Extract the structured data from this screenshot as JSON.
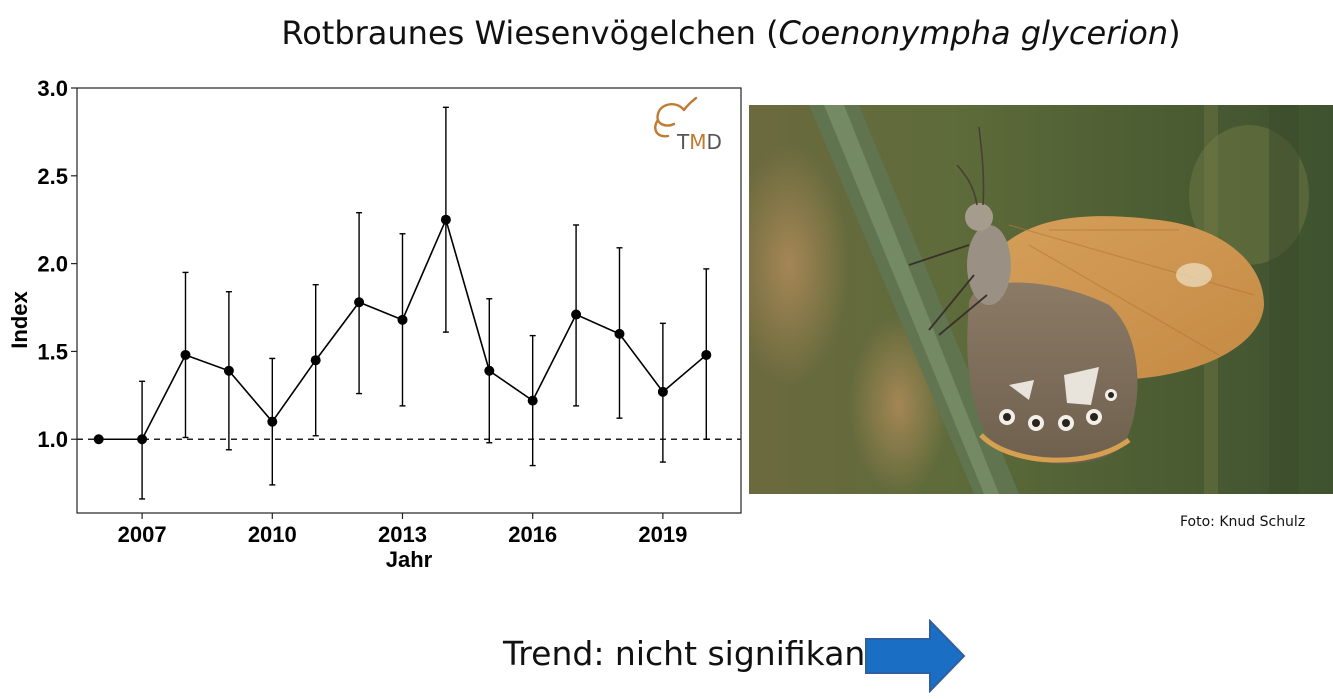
{
  "title": {
    "main": "Rotbraunes Wiesenvögelchen (",
    "species": "Coenonympha glycerion",
    "close": ")"
  },
  "logo": {
    "text_t": "T",
    "text_m": "M",
    "text_d": "D"
  },
  "photo_credit": "Foto: Knud Schulz",
  "trend": {
    "label": "Trend: nicht signifikant",
    "arrow_color": "#1a6fc4"
  },
  "chart_data": {
    "type": "line",
    "xlabel": "Jahr",
    "ylabel": "Index",
    "xlim": [
      2005.5,
      2020.8
    ],
    "ylim": [
      0.58,
      3.0
    ],
    "x_ticks": [
      2007,
      2010,
      2013,
      2016,
      2019
    ],
    "y_ticks": [
      1.0,
      1.5,
      2.0,
      2.5,
      3.0
    ],
    "y_tick_labels": [
      "1.0",
      "1.5",
      "2.0",
      "2.5",
      "3.0"
    ],
    "reference_line": 1.0,
    "grid": false,
    "series": [
      {
        "x": [
          2006,
          2007,
          2008,
          2009,
          2010,
          2011,
          2012,
          2013,
          2014,
          2015,
          2016,
          2017,
          2018,
          2019,
          2020
        ],
        "values": [
          1.0,
          1.0,
          1.48,
          1.39,
          1.1,
          1.45,
          1.78,
          1.68,
          2.25,
          1.39,
          1.22,
          1.71,
          1.6,
          1.27,
          1.48
        ],
        "lower": [
          1.0,
          0.66,
          1.01,
          0.94,
          0.74,
          1.02,
          1.26,
          1.19,
          1.61,
          0.98,
          0.85,
          1.19,
          1.12,
          0.87,
          1.0
        ],
        "upper": [
          1.0,
          1.33,
          1.95,
          1.84,
          1.46,
          1.88,
          2.29,
          2.17,
          2.89,
          1.8,
          1.59,
          2.22,
          2.09,
          1.66,
          1.97
        ]
      }
    ]
  }
}
